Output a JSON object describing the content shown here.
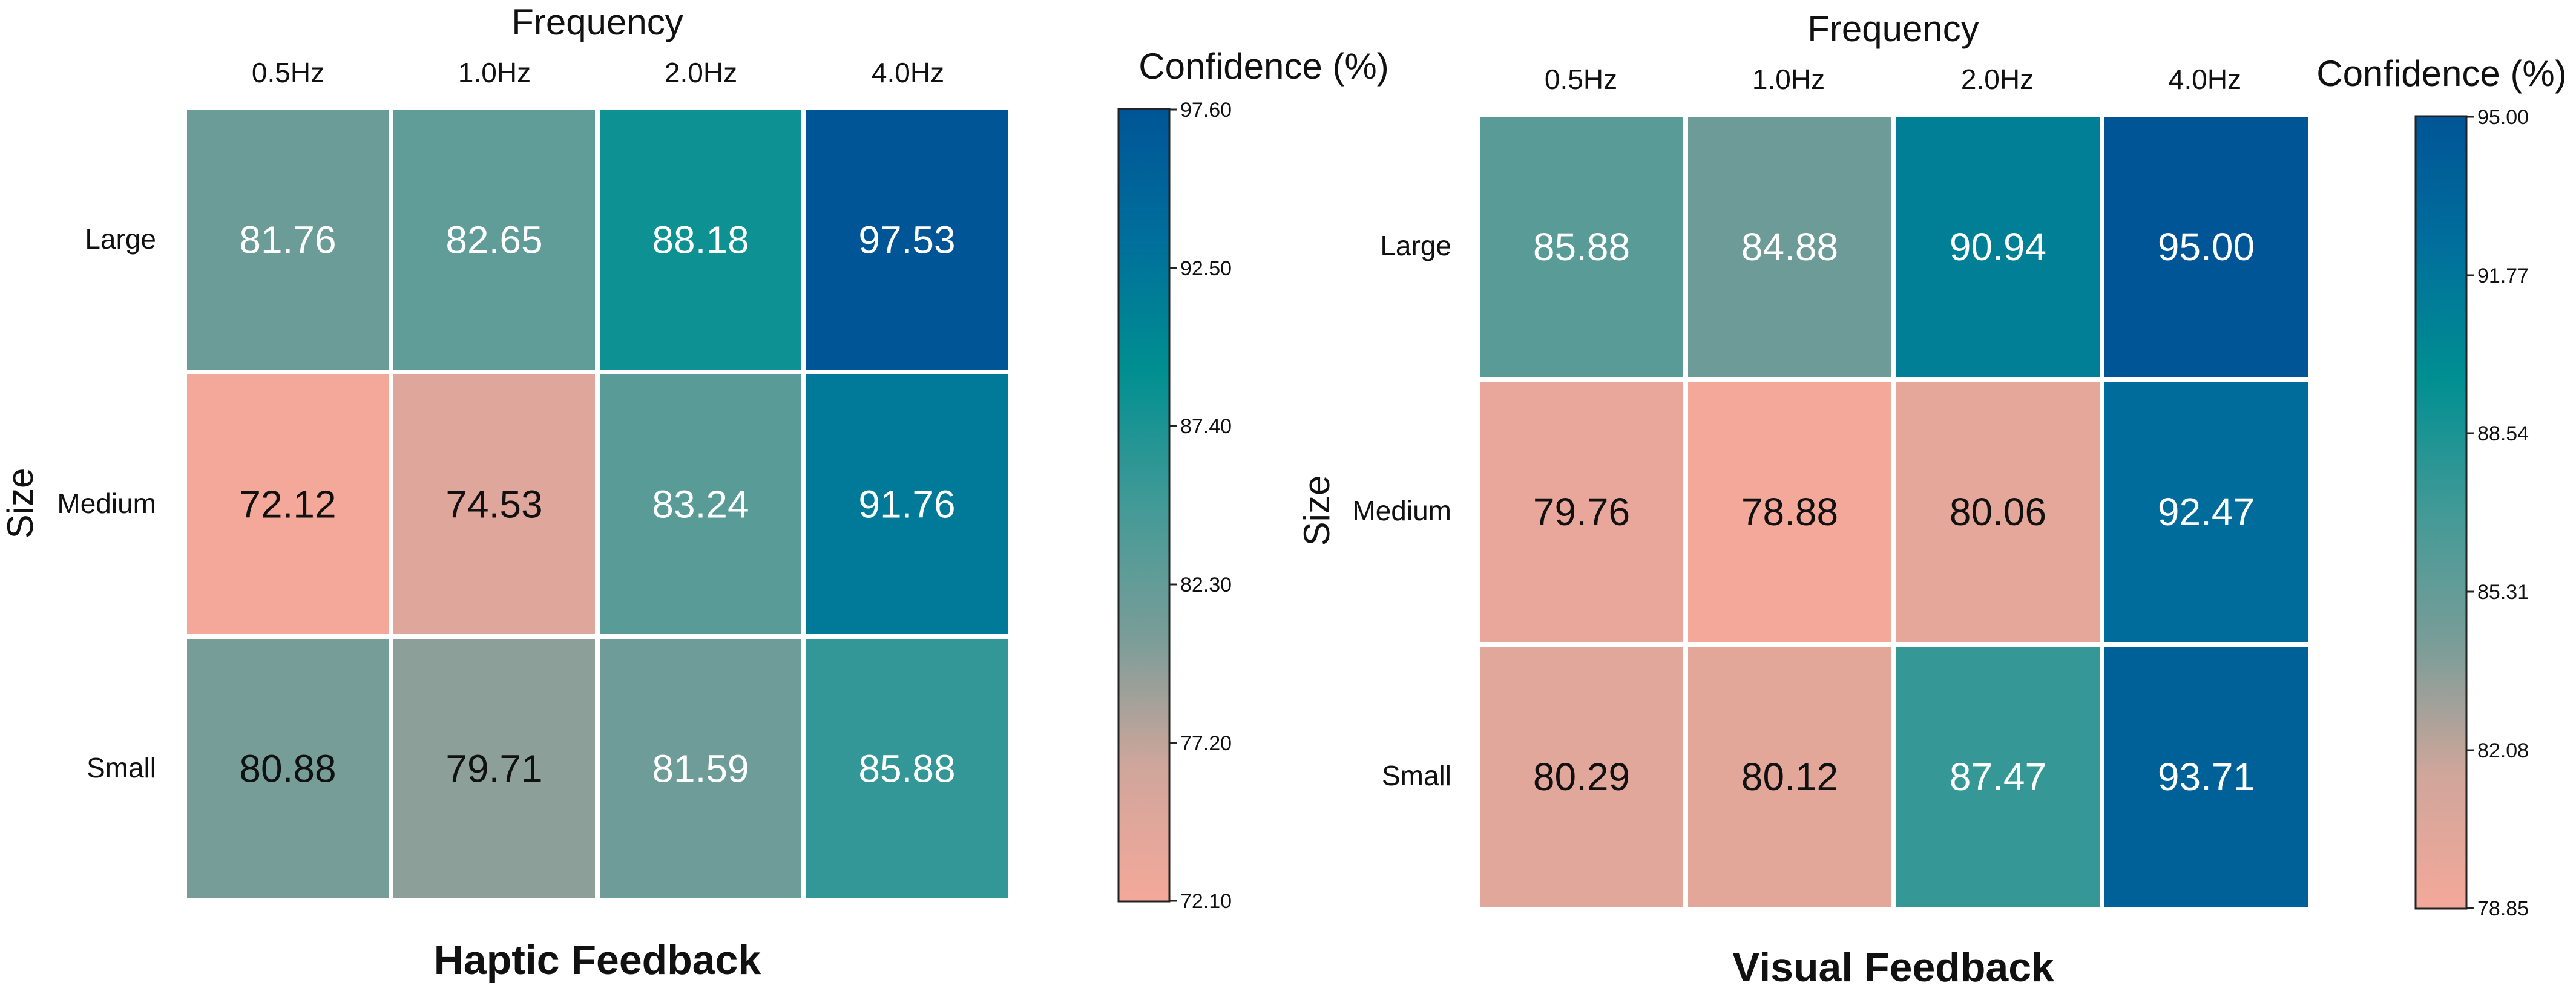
{
  "chart_data": [
    {
      "type": "heatmap",
      "title": "Haptic Feedback",
      "xlabel": "Frequency",
      "ylabel": "Size",
      "x_categories": [
        "0.5Hz",
        "1.0Hz",
        "2.0Hz",
        "4.0Hz"
      ],
      "y_categories": [
        "Large",
        "Medium",
        "Small"
      ],
      "values": [
        [
          81.76,
          82.65,
          88.18,
          97.53
        ],
        [
          72.12,
          74.53,
          83.24,
          91.76
        ],
        [
          80.88,
          79.71,
          81.59,
          85.88
        ]
      ],
      "value_labels": [
        [
          "81.76",
          "82.65",
          "88.18",
          "97.53"
        ],
        [
          "72.12",
          "74.53",
          "83.24",
          "91.76"
        ],
        [
          "80.88",
          "79.71",
          "81.59",
          "85.88"
        ]
      ],
      "colorbar": {
        "title": "Confidence (%)",
        "range": [
          72.1,
          97.6
        ],
        "ticks": [
          "97.60",
          "92.50",
          "87.40",
          "82.30",
          "77.20",
          "72.10"
        ]
      }
    },
    {
      "type": "heatmap",
      "title": "Visual Feedback",
      "xlabel": "Frequency",
      "ylabel": "Size",
      "x_categories": [
        "0.5Hz",
        "1.0Hz",
        "2.0Hz",
        "4.0Hz"
      ],
      "y_categories": [
        "Large",
        "Medium",
        "Small"
      ],
      "values": [
        [
          85.88,
          84.88,
          90.94,
          95.0
        ],
        [
          79.76,
          78.88,
          80.06,
          92.47
        ],
        [
          80.29,
          80.12,
          87.47,
          93.71
        ]
      ],
      "value_labels": [
        [
          "85.88",
          "84.88",
          "90.94",
          "95.00"
        ],
        [
          "79.76",
          "78.88",
          "80.06",
          "92.47"
        ],
        [
          "80.29",
          "80.12",
          "87.47",
          "93.71"
        ]
      ],
      "colorbar": {
        "title": "Confidence (%)",
        "range": [
          78.85,
          95.0
        ],
        "ticks": [
          "95.00",
          "91.77",
          "88.54",
          "85.31",
          "82.08",
          "78.85"
        ]
      }
    }
  ],
  "colors": {
    "scale": [
      "#f4a89a",
      "#d0a69b",
      "#7b9d98",
      "#429a97",
      "#008f91",
      "#006e9c",
      "#005596"
    ],
    "grid_line": "#ffffff",
    "dark_text": "#111111",
    "light_text": "#ffffff"
  }
}
